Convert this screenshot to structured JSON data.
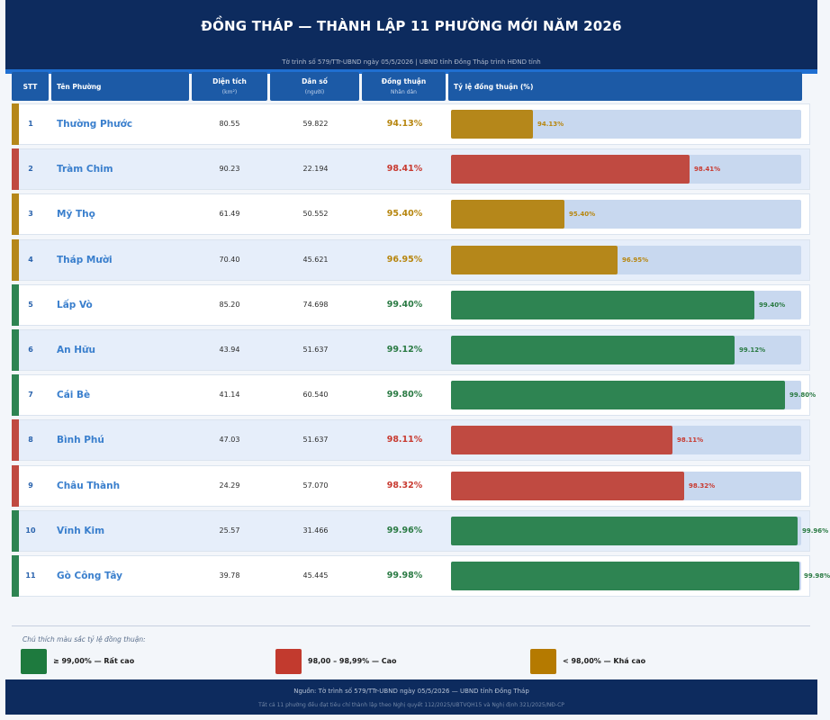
{
  "header": {
    "title": "ĐỒNG THÁP — THÀNH LẬP 11 PHƯỜNG MỚI NĂM 2026",
    "subtitle": "Tờ trình số 579/TTr-UBND ngày 05/5/2026  |  UBND tỉnh Đồng Tháp trình HĐND tỉnh"
  },
  "columns": {
    "stt": "STT",
    "name": "Tên Phường",
    "area": "Diện tích",
    "area_unit": "(km²)",
    "pop": "Dân số",
    "pop_unit": "(người)",
    "consent": "Đồng thuận",
    "consent_unit": "Nhân dân",
    "rate": "Tỷ lệ đồng thuận (%)"
  },
  "colors": {
    "very_high": "#2e8452",
    "high": "#c04a41",
    "fair": "#b5871a",
    "very_high_text": "#2a7a43",
    "high_text": "#c83a30",
    "fair_text": "#b7860f"
  },
  "chart_data": {
    "type": "bar",
    "title": "Tỷ lệ đồng thuận (%)",
    "xlim": [
      0,
      100
    ],
    "rows": [
      {
        "stt": "1",
        "name": "Thường Phước",
        "area": "80.55",
        "population": "59.822",
        "rate": 94.13,
        "rate_label": "94.13%",
        "tier": "fair"
      },
      {
        "stt": "2",
        "name": "Tràm Chim",
        "area": "90.23",
        "population": "22.194",
        "rate": 98.41,
        "rate_label": "98.41%",
        "tier": "high"
      },
      {
        "stt": "3",
        "name": "Mỹ Thọ",
        "area": "61.49",
        "population": "50.552",
        "rate": 95.4,
        "rate_label": "95.40%",
        "tier": "fair"
      },
      {
        "stt": "4",
        "name": "Tháp Mười",
        "area": "70.40",
        "population": "45.621",
        "rate": 96.95,
        "rate_label": "96.95%",
        "tier": "fair"
      },
      {
        "stt": "5",
        "name": "Lấp Vò",
        "area": "85.20",
        "population": "74.698",
        "rate": 99.4,
        "rate_label": "99.40%",
        "tier": "very_high"
      },
      {
        "stt": "6",
        "name": "An Hữu",
        "area": "43.94",
        "population": "51.637",
        "rate": 99.12,
        "rate_label": "99.12%",
        "tier": "very_high"
      },
      {
        "stt": "7",
        "name": "Cái Bè",
        "area": "41.14",
        "population": "60.540",
        "rate": 99.8,
        "rate_label": "99.80%",
        "tier": "very_high"
      },
      {
        "stt": "8",
        "name": "Bình Phú",
        "area": "47.03",
        "population": "51.637",
        "rate": 98.11,
        "rate_label": "98.11%",
        "tier": "high"
      },
      {
        "stt": "9",
        "name": "Châu Thành",
        "area": "24.29",
        "population": "57.070",
        "rate": 98.32,
        "rate_label": "98.32%",
        "tier": "high"
      },
      {
        "stt": "10",
        "name": "Vĩnh Kim",
        "area": "25.57",
        "population": "31.466",
        "rate": 99.96,
        "rate_label": "99.96%",
        "tier": "very_high"
      },
      {
        "stt": "11",
        "name": "Gò Công Tây",
        "area": "39.78",
        "population": "45.445",
        "rate": 99.98,
        "rate_label": "99.98%",
        "tier": "very_high"
      }
    ]
  },
  "legend": {
    "title": "Chú thích màu sắc tỷ lệ đồng thuận:",
    "items": [
      {
        "label": "≥ 99,00%  —  Rất cao",
        "color": "#1e7a3e"
      },
      {
        "label": "98,00 – 98,99%  —  Cao",
        "color": "#c23a2e"
      },
      {
        "label": "< 98,00%  —  Khá cao",
        "color": "#b57a00"
      }
    ]
  },
  "footer": {
    "source": "Nguồn: Tờ trình số 579/TTr-UBND ngày 05/5/2026 — UBND tỉnh Đồng Tháp",
    "note": "Tất cả 11 phường đều đạt tiêu chí thành lập theo Nghị quyết 112/2025/UBTVQH15 và Nghị định 321/2025/NĐ-CP"
  }
}
